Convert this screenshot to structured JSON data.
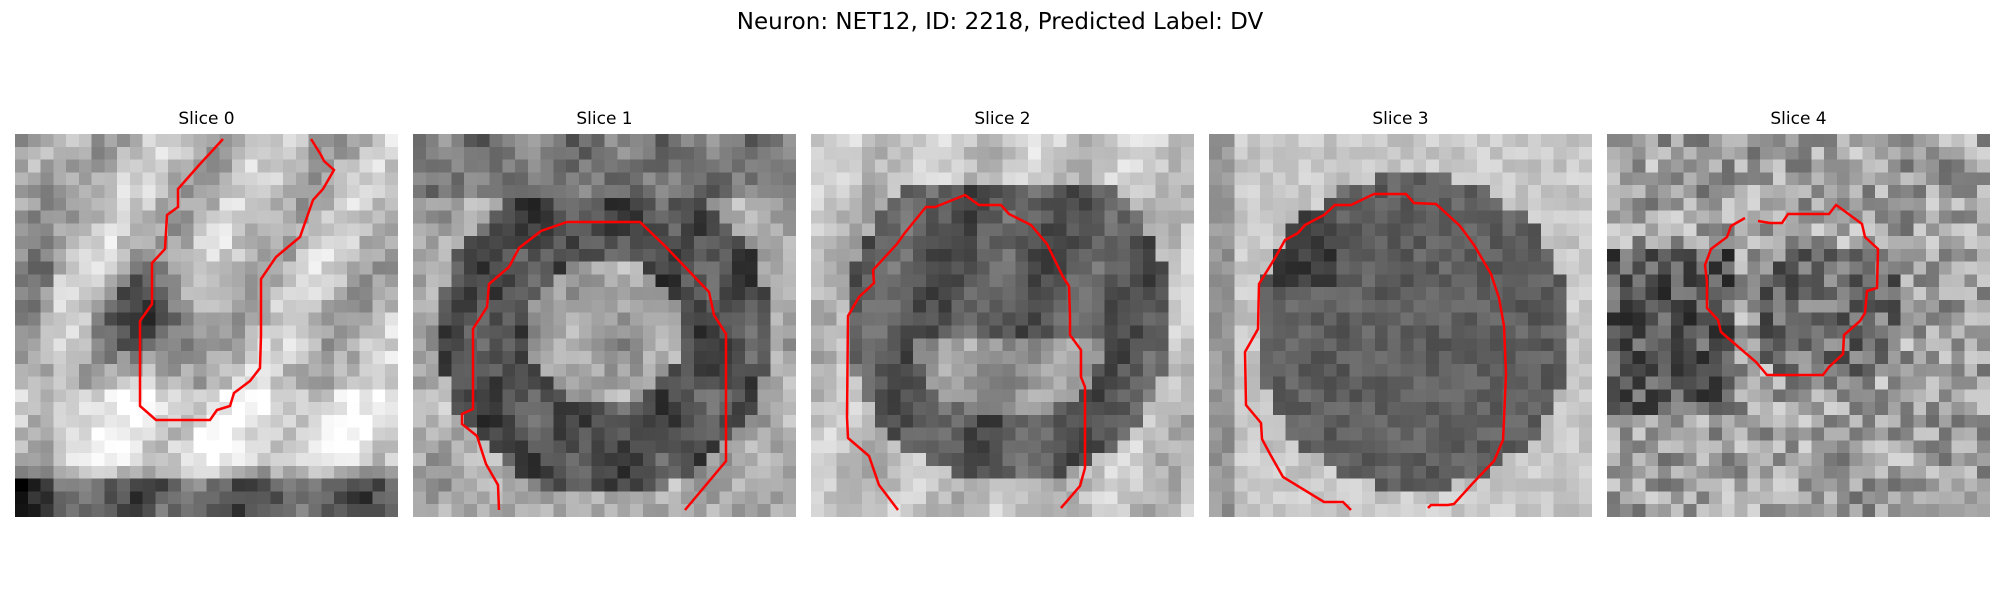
{
  "figure": {
    "title": "Neuron: NET12, ID: 2218, Predicted Label: DV"
  },
  "panels": [
    {
      "title": "Slice 0"
    },
    {
      "title": "Slice 1"
    },
    {
      "title": "Slice 2"
    },
    {
      "title": "Slice 3"
    },
    {
      "title": "Slice 4"
    }
  ],
  "colors": {
    "contour": "#ff0000",
    "background": "#ffffff",
    "colormap": "grayscale"
  }
}
